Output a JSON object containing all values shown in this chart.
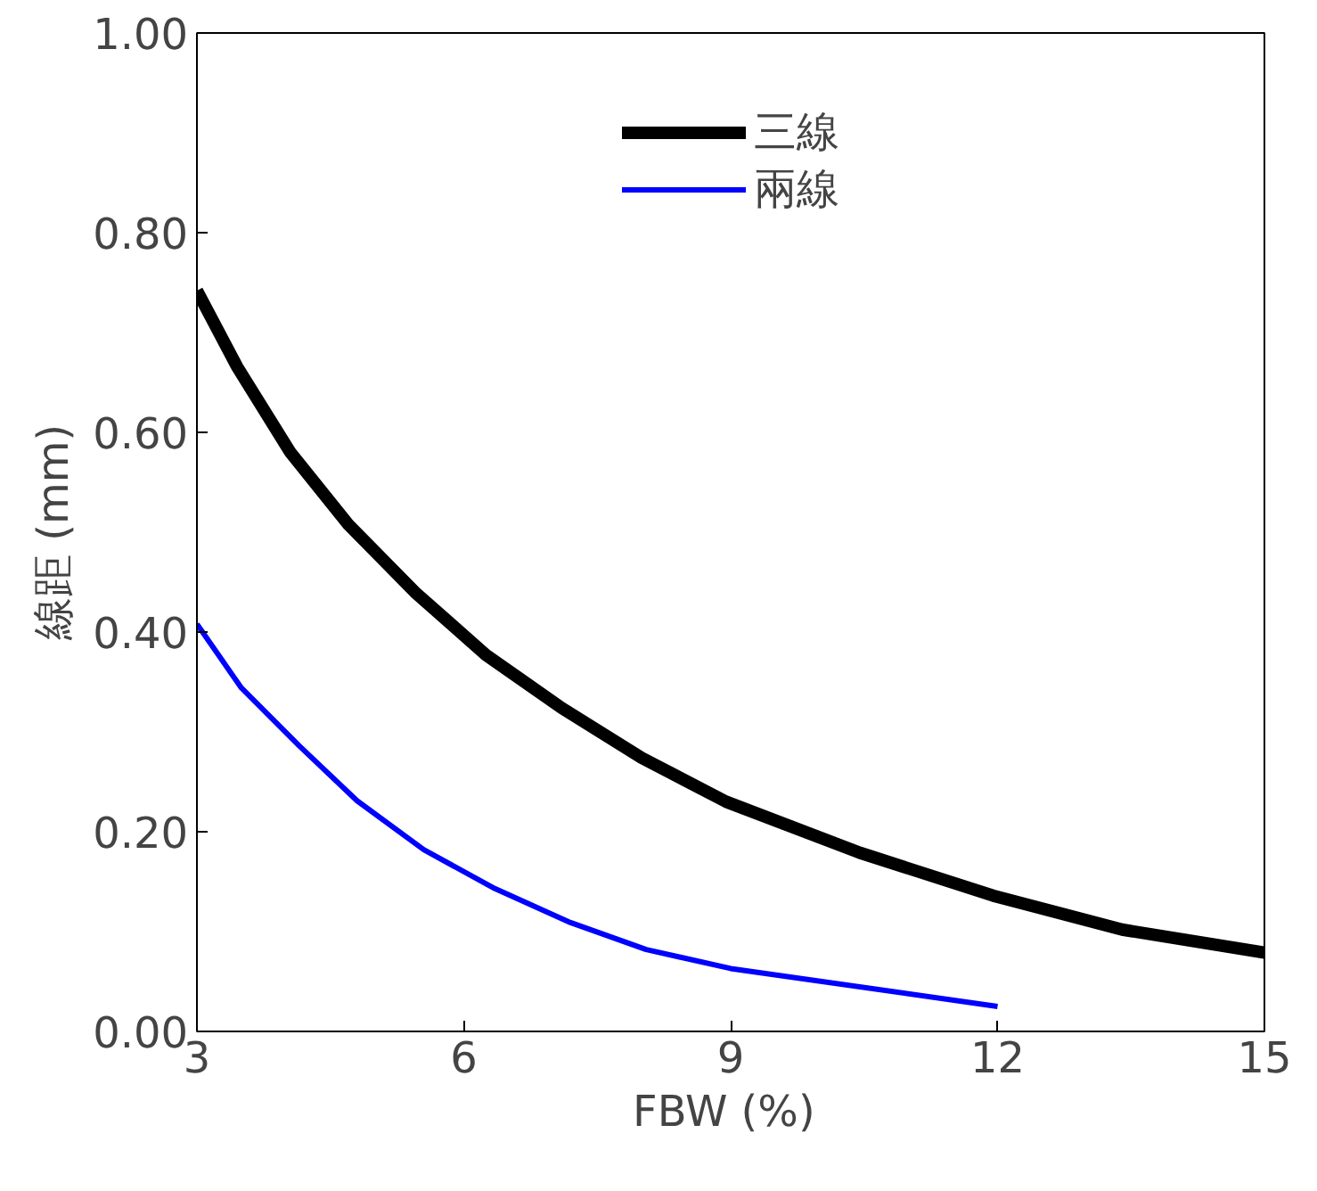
{
  "chart_data": {
    "type": "line",
    "xlabel": "FBW  (%)",
    "ylabel": "線距 (mm)",
    "xlim": [
      3,
      15
    ],
    "ylim": [
      0,
      1
    ],
    "xticks": [
      3,
      6,
      9,
      12,
      15
    ],
    "yticks": [
      {
        "value": 0,
        "label": "0.00"
      },
      {
        "value": 0.2,
        "label": "0.20"
      },
      {
        "value": 0.4,
        "label": "0.40"
      },
      {
        "value": 0.6,
        "label": "0.60"
      },
      {
        "value": 0.8,
        "label": "0.80"
      },
      {
        "value": 1,
        "label": "1.00"
      }
    ],
    "grid": false,
    "legend": "top",
    "marker": "none",
    "line_style": "solid",
    "series": [
      {
        "name": "三線",
        "color": "#000000",
        "x": [
          3,
          3.45,
          4.05,
          4.7,
          5.45,
          6.25,
          7.1,
          8,
          8.95,
          10.45,
          11.95,
          13.4,
          15
        ],
        "values": [
          0.742,
          0.666,
          0.58,
          0.508,
          0.44,
          0.377,
          0.324,
          0.274,
          0.23,
          0.179,
          0.136,
          0.102,
          0.079
        ]
      },
      {
        "name": "兩線",
        "color": "#0000ff",
        "x": [
          3,
          3.5,
          4.15,
          4.8,
          5.55,
          6.35,
          7.2,
          8.05,
          9,
          12
        ],
        "values": [
          0.408,
          0.344,
          0.286,
          0.231,
          0.182,
          0.143,
          0.109,
          0.082,
          0.063,
          0.025
        ]
      }
    ]
  }
}
